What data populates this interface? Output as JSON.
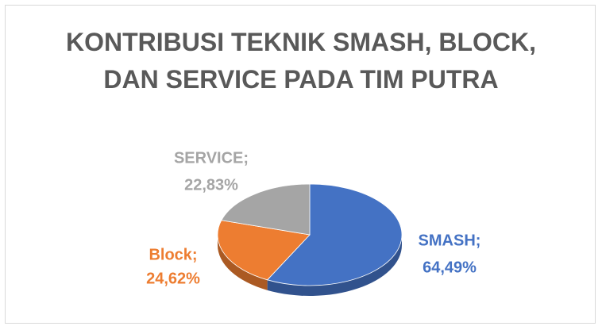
{
  "chart_data": {
    "type": "pie3d",
    "title": "KONTRIBUSI TEKNIK SMASH, BLOCK, DAN SERVICE PADA TIM PUTRA",
    "categories": [
      "SMASH;",
      "Block;",
      "SERVICE;"
    ],
    "values": [
      64.49,
      24.62,
      22.83
    ],
    "value_labels": [
      "64,49%",
      "24,62%",
      "22,83%"
    ],
    "colors": [
      "#4472c4",
      "#ed7d31",
      "#a5a5a5"
    ]
  }
}
